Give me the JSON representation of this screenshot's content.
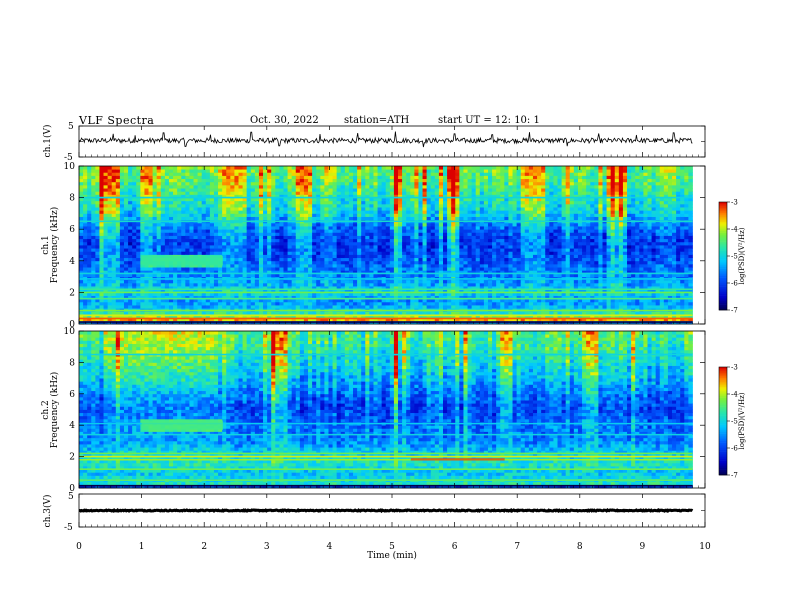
{
  "header": {
    "title": "VLF  Spectra",
    "date": "Oct. 30, 2022",
    "station": "station=ATH",
    "start": "start  UT  =    12: 10: 1"
  },
  "chart_data": [
    {
      "type": "line",
      "id": "ch1",
      "ylabel": "ch.1(V)",
      "ylim": [
        -5,
        5
      ],
      "y_tick_labels": [
        "5",
        "-5"
      ],
      "xlim": [
        0,
        10
      ],
      "data_extent_min": 9.8,
      "baseline": 0.3,
      "noise_amplitude": 0.8,
      "spikes": [
        {
          "x": 0.55,
          "y": 2.5
        },
        {
          "x": 0.9,
          "y": 2.0
        },
        {
          "x": 1.35,
          "y": 2.8
        },
        {
          "x": 1.7,
          "y": -1.6
        },
        {
          "x": 2.1,
          "y": 2.2
        },
        {
          "x": 2.75,
          "y": 3.0
        },
        {
          "x": 3.2,
          "y": -1.4
        },
        {
          "x": 3.85,
          "y": 2.4
        },
        {
          "x": 4.45,
          "y": 2.7
        },
        {
          "x": 5.05,
          "y": 3.2
        },
        {
          "x": 5.5,
          "y": -1.8
        },
        {
          "x": 6.0,
          "y": 2.5
        },
        {
          "x": 6.6,
          "y": 2.2
        },
        {
          "x": 7.2,
          "y": 3.0
        },
        {
          "x": 7.8,
          "y": -1.5
        },
        {
          "x": 8.3,
          "y": 2.6
        },
        {
          "x": 8.9,
          "y": 2.1
        },
        {
          "x": 9.5,
          "y": 2.8
        }
      ]
    },
    {
      "type": "heatmap",
      "id": "ch1_spec",
      "ylabel_top": "ch.1",
      "ylabel": "Frequency  (kHz)",
      "ylim": [
        0,
        10
      ],
      "y_tick_labels": [
        "0",
        "2",
        "4",
        "6",
        "8",
        "10"
      ],
      "xlim": [
        0,
        10
      ],
      "data_extent_min": 9.8,
      "colorbar": {
        "label": "log(PSD)(V²/Hz)",
        "range": [
          -7,
          -3
        ],
        "ticks": [
          "-3",
          "-4",
          "-5",
          "-6",
          "-7"
        ]
      },
      "profile": [
        {
          "f": 0.0,
          "v": -6.5
        },
        {
          "f": 0.3,
          "v": -3.6
        },
        {
          "f": 0.6,
          "v": -4.6
        },
        {
          "f": 1.0,
          "v": -5.3
        },
        {
          "f": 1.5,
          "v": -5.5
        },
        {
          "f": 2.0,
          "v": -5.0
        },
        {
          "f": 2.5,
          "v": -5.4
        },
        {
          "f": 3.0,
          "v": -5.6
        },
        {
          "f": 4.0,
          "v": -5.9
        },
        {
          "f": 5.0,
          "v": -6.1
        },
        {
          "f": 6.0,
          "v": -5.8
        },
        {
          "f": 7.0,
          "v": -5.1
        },
        {
          "f": 8.0,
          "v": -4.8
        },
        {
          "f": 9.0,
          "v": -4.5
        },
        {
          "f": 10.0,
          "v": -4.3
        }
      ],
      "lines": [
        {
          "f": 0.12,
          "v": -7.0
        },
        {
          "f": 0.35,
          "v": -3.3
        },
        {
          "f": 0.55,
          "v": -3.9
        },
        {
          "f": 0.85,
          "v": -4.2
        },
        {
          "f": 1.6,
          "v": -4.5
        },
        {
          "f": 2.0,
          "v": -4.3
        },
        {
          "f": 2.2,
          "v": -4.6
        },
        {
          "f": 2.85,
          "v": -5.1
        },
        {
          "f": 3.2,
          "v": -5.0
        },
        {
          "f": 6.5,
          "v": -4.9
        },
        {
          "f": 8.0,
          "v": -5.0
        }
      ],
      "patches": [
        {
          "x0": 1.0,
          "x1": 2.3,
          "f0": 3.7,
          "f1": 4.3,
          "v": -4.6
        }
      ],
      "bursts": [
        {
          "x": 0.5,
          "w": 0.15,
          "v": -4.0
        },
        {
          "x": 1.1,
          "w": 0.1,
          "v": -4.2
        },
        {
          "x": 2.5,
          "w": 0.2,
          "v": -4.3
        },
        {
          "x": 3.6,
          "w": 0.15,
          "v": -4.1
        },
        {
          "x": 5.05,
          "w": 0.05,
          "v": -3.3
        },
        {
          "x": 5.95,
          "w": 0.1,
          "v": -4.0
        },
        {
          "x": 7.3,
          "w": 0.15,
          "v": -4.3
        },
        {
          "x": 8.6,
          "w": 0.15,
          "v": -4.2
        }
      ]
    },
    {
      "type": "heatmap",
      "id": "ch2_spec",
      "ylabel_top": "ch.2",
      "ylabel": "Frequency  (kHz)",
      "ylim": [
        0,
        10
      ],
      "y_tick_labels": [
        "0",
        "2",
        "4",
        "6",
        "8",
        "10"
      ],
      "xlim": [
        0,
        10
      ],
      "data_extent_min": 9.8,
      "colorbar": {
        "label": "log(PSD)(V²/Hz)",
        "range": [
          -7,
          -3
        ],
        "ticks": [
          "-3",
          "-4",
          "-5",
          "-6",
          "-7"
        ]
      },
      "profile": [
        {
          "f": 0.0,
          "v": -6.5
        },
        {
          "f": 0.3,
          "v": -4.8
        },
        {
          "f": 1.0,
          "v": -5.2
        },
        {
          "f": 1.5,
          "v": -4.8
        },
        {
          "f": 2.0,
          "v": -5.0
        },
        {
          "f": 3.0,
          "v": -5.6
        },
        {
          "f": 4.0,
          "v": -5.7
        },
        {
          "f": 5.0,
          "v": -6.0
        },
        {
          "f": 6.0,
          "v": -5.7
        },
        {
          "f": 7.0,
          "v": -5.3
        },
        {
          "f": 8.0,
          "v": -5.0
        },
        {
          "f": 9.0,
          "v": -4.7
        },
        {
          "f": 10.0,
          "v": -4.5
        }
      ],
      "lines": [
        {
          "f": 0.15,
          "v": -7.0
        },
        {
          "f": 0.5,
          "v": -4.4
        },
        {
          "f": 1.2,
          "v": -4.3
        },
        {
          "f": 1.8,
          "v": -4.1
        },
        {
          "f": 2.0,
          "v": -3.9
        },
        {
          "f": 2.2,
          "v": -4.3
        },
        {
          "f": 3.4,
          "v": -5.0
        },
        {
          "f": 4.1,
          "v": -5.1
        },
        {
          "f": 8.5,
          "v": -5.0
        }
      ],
      "patches": [
        {
          "x0": 1.0,
          "x1": 2.3,
          "f0": 3.7,
          "f1": 4.3,
          "v": -4.5
        },
        {
          "x0": 5.3,
          "x1": 6.8,
          "f0": 1.75,
          "f1": 1.9,
          "v": -3.2
        }
      ],
      "bursts": [
        {
          "x": 1.3,
          "w": 0.9,
          "v": -4.6
        },
        {
          "x": 5.05,
          "w": 0.05,
          "v": -3.2
        },
        {
          "x": 3.2,
          "w": 0.1,
          "v": -4.0
        },
        {
          "x": 6.8,
          "w": 0.1,
          "v": -4.2
        },
        {
          "x": 8.2,
          "w": 0.1,
          "v": -4.1
        }
      ]
    },
    {
      "type": "line",
      "id": "ch3",
      "ylabel": "ch.3(V)",
      "ylim": [
        -5,
        5
      ],
      "y_tick_labels": [
        "5",
        "-5"
      ],
      "xlim": [
        0,
        10
      ],
      "data_extent_min": 9.8,
      "baseline": 0.0,
      "noise_amplitude": 0.15,
      "spikes": []
    }
  ],
  "x_axis": {
    "xlabel": "Time  (min)",
    "xlim": [
      0,
      10
    ],
    "tick_labels": [
      "0",
      "1",
      "2",
      "3",
      "4",
      "5",
      "6",
      "7",
      "8",
      "9",
      "10"
    ]
  }
}
